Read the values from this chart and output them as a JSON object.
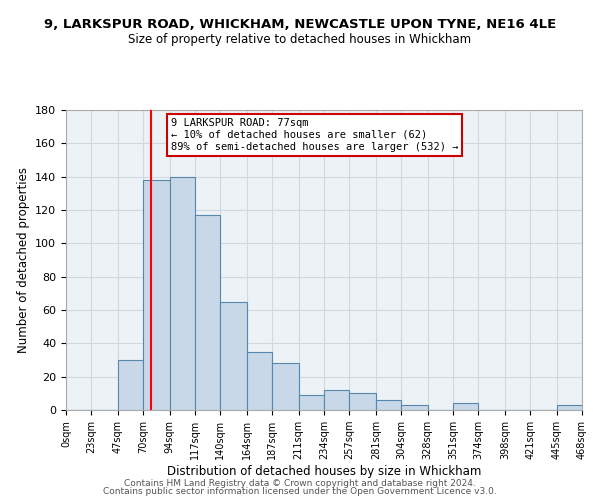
{
  "title_line1": "9, LARKSPUR ROAD, WHICKHAM, NEWCASTLE UPON TYNE, NE16 4LE",
  "title_line2": "Size of property relative to detached houses in Whickham",
  "xlabel": "Distribution of detached houses by size in Whickham",
  "ylabel": "Number of detached properties",
  "footer_line1": "Contains HM Land Registry data © Crown copyright and database right 2024.",
  "footer_line2": "Contains public sector information licensed under the Open Government Licence v3.0.",
  "bin_edges": [
    0,
    23,
    47,
    70,
    94,
    117,
    140,
    164,
    187,
    211,
    234,
    257,
    281,
    304,
    328,
    351,
    374,
    398,
    421,
    445,
    468
  ],
  "bar_heights": [
    0,
    0,
    30,
    138,
    140,
    117,
    65,
    35,
    28,
    9,
    12,
    10,
    6,
    3,
    0,
    4,
    0,
    0,
    0,
    3
  ],
  "bar_color": "#c8d8e8",
  "bar_edge_color": "#5588aa",
  "grid_color": "#d0d8e0",
  "bg_color": "#edf2f7",
  "annotation_line1": "9 LARKSPUR ROAD: 77sqm",
  "annotation_line2": "← 10% of detached houses are smaller (62)",
  "annotation_line3": "89% of semi-detached houses are larger (532) →",
  "annotation_box_edge": "#cc0000",
  "redline_x": 77,
  "ylim": [
    0,
    180
  ],
  "yticks": [
    0,
    20,
    40,
    60,
    80,
    100,
    120,
    140,
    160,
    180
  ],
  "xtick_labels": [
    "0sqm",
    "23sqm",
    "47sqm",
    "70sqm",
    "94sqm",
    "117sqm",
    "140sqm",
    "164sqm",
    "187sqm",
    "211sqm",
    "234sqm",
    "257sqm",
    "281sqm",
    "304sqm",
    "328sqm",
    "351sqm",
    "374sqm",
    "398sqm",
    "421sqm",
    "445sqm",
    "468sqm"
  ]
}
